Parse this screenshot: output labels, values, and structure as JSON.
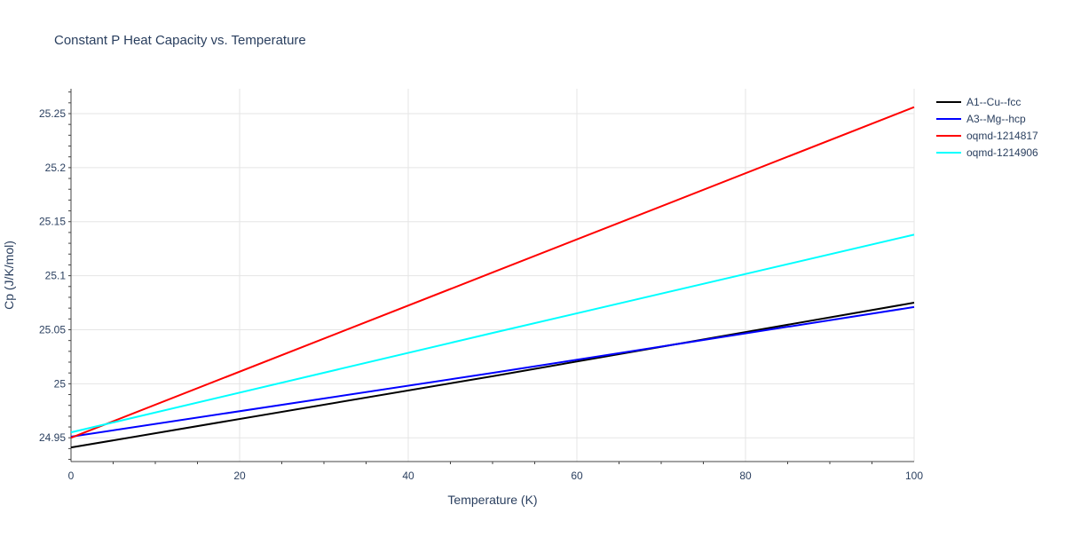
{
  "chart_data": {
    "type": "line",
    "title": "Constant P Heat Capacity vs. Temperature",
    "xlabel": "Temperature (K)",
    "ylabel": "Cp (J/K/mol)",
    "xlim": [
      0,
      100
    ],
    "ylim": [
      24.928,
      25.273
    ],
    "x_ticks": [
      0,
      20,
      40,
      60,
      80,
      100
    ],
    "x_tick_labels": [
      "0",
      "20",
      "40",
      "60",
      "80",
      "100"
    ],
    "y_ticks": [
      24.95,
      25.0,
      25.05,
      25.1,
      25.15,
      25.2,
      25.25
    ],
    "y_tick_labels": [
      "24.95",
      "25",
      "25.05",
      "25.1",
      "25.15",
      "25.2",
      "25.25"
    ],
    "grid": true,
    "legend_position": "top-right outside",
    "series": [
      {
        "name": "A1--Cu--fcc",
        "color": "#000000",
        "x": [
          0,
          50,
          100
        ],
        "values": [
          24.941,
          25.007,
          25.075
        ]
      },
      {
        "name": "A3--Mg--hcp",
        "color": "#0000ff",
        "x": [
          0,
          50,
          100
        ],
        "values": [
          24.951,
          25.01,
          25.071
        ]
      },
      {
        "name": "oqmd-1214817",
        "color": "#ff0000",
        "x": [
          0,
          50,
          100
        ],
        "values": [
          24.95,
          25.103,
          25.256
        ]
      },
      {
        "name": "oqmd-1214906",
        "color": "#00ffff",
        "x": [
          0,
          50,
          100
        ],
        "values": [
          24.955,
          25.047,
          25.138
        ]
      }
    ]
  }
}
